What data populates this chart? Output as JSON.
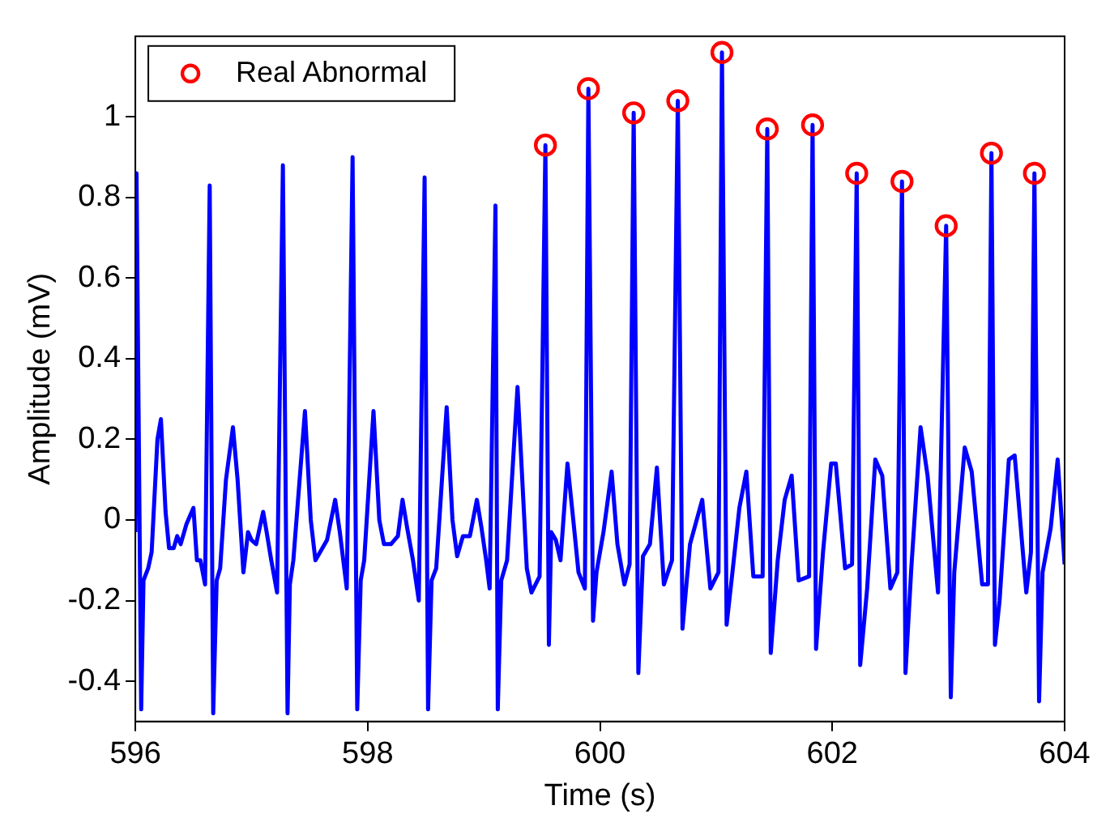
{
  "chart_data": {
    "type": "line",
    "xlabel": "Time (s)",
    "ylabel": "Amplitude (mV)",
    "xlim": [
      596,
      604
    ],
    "xticks": [
      596,
      598,
      600,
      602,
      604
    ],
    "ylim": [
      -0.5,
      1.2
    ],
    "yticks": [
      -0.4,
      -0.2,
      0,
      0.2,
      0.4,
      0.6,
      0.8,
      1
    ],
    "grid": false,
    "legend": "top left",
    "series": [
      {
        "type": "line",
        "color": "#0000ff",
        "marker": "none",
        "line_style": "solid",
        "x": [
          596.0,
          596.01,
          596.05,
          596.07,
          596.11,
          596.14,
          596.19,
          596.22,
          596.26,
          596.29,
          596.33,
          596.36,
          596.39,
          596.44,
          596.5,
          596.53,
          596.56,
          596.6,
          596.64,
          596.67,
          596.7,
          596.73,
          596.78,
          596.84,
          596.88,
          596.93,
          596.97,
          597.0,
          597.04,
          597.1,
          597.13,
          597.17,
          597.22,
          597.27,
          597.31,
          597.33,
          597.36,
          597.46,
          597.51,
          597.55,
          597.61,
          597.65,
          597.72,
          597.76,
          597.79,
          597.82,
          597.87,
          597.91,
          597.94,
          597.97,
          598.05,
          598.1,
          598.14,
          598.2,
          598.26,
          598.3,
          598.34,
          598.39,
          598.44,
          598.49,
          598.52,
          598.55,
          598.59,
          598.68,
          598.73,
          598.77,
          598.82,
          598.88,
          598.94,
          598.98,
          599.02,
          599.05,
          599.1,
          599.12,
          599.15,
          599.2,
          599.29,
          599.37,
          599.41,
          599.48,
          599.53,
          599.56,
          599.58,
          599.62,
          599.66,
          599.72,
          599.77,
          599.815,
          599.87,
          599.9,
          599.94,
          599.97,
          600.03,
          600.1,
          600.15,
          600.21,
          600.255,
          600.29,
          600.33,
          600.37,
          600.43,
          600.49,
          600.55,
          600.62,
          600.67,
          600.71,
          600.775,
          600.88,
          600.95,
          601.02,
          601.05,
          601.09,
          601.14,
          601.2,
          601.26,
          601.32,
          601.4,
          601.44,
          601.47,
          601.53,
          601.59,
          601.65,
          601.71,
          601.8,
          601.83,
          601.86,
          601.92,
          601.99,
          602.03,
          602.11,
          602.17,
          602.21,
          602.24,
          602.3,
          602.37,
          602.43,
          602.5,
          602.56,
          602.6,
          602.63,
          602.68,
          602.76,
          602.82,
          602.91,
          602.98,
          603.02,
          603.05,
          603.14,
          603.2,
          603.29,
          603.34,
          603.37,
          603.4,
          603.44,
          603.52,
          603.57,
          603.67,
          603.71,
          603.74,
          603.78,
          603.81,
          603.88,
          603.94,
          604.0
        ],
        "values": [
          -0.03,
          0.86,
          -0.47,
          -0.15,
          -0.12,
          -0.08,
          0.2,
          0.25,
          0.02,
          -0.07,
          -0.07,
          -0.04,
          -0.06,
          -0.01,
          0.03,
          -0.1,
          -0.1,
          -0.16,
          0.83,
          -0.48,
          -0.15,
          -0.12,
          0.1,
          0.23,
          0.1,
          -0.13,
          -0.03,
          -0.05,
          -0.06,
          0.02,
          -0.03,
          -0.1,
          -0.18,
          0.88,
          -0.48,
          -0.16,
          -0.1,
          0.27,
          0,
          -0.1,
          -0.07,
          -0.05,
          0.05,
          -0.03,
          -0.1,
          -0.17,
          0.9,
          -0.47,
          -0.15,
          -0.1,
          0.27,
          0,
          -0.06,
          -0.06,
          -0.04,
          0.05,
          -0.02,
          -0.1,
          -0.2,
          0.85,
          -0.47,
          -0.15,
          -0.12,
          0.28,
          0,
          -0.09,
          -0.04,
          -0.04,
          0.05,
          -0.02,
          -0.1,
          -0.17,
          0.78,
          -0.47,
          -0.15,
          -0.1,
          0.33,
          -0.12,
          -0.18,
          -0.14,
          0.93,
          -0.31,
          -0.03,
          -0.05,
          -0.1,
          0.14,
          0,
          -0.13,
          -0.17,
          1.07,
          -0.25,
          -0.13,
          -0.03,
          0.12,
          -0.06,
          -0.16,
          -0.11,
          1.01,
          -0.38,
          -0.09,
          -0.06,
          0.13,
          -0.16,
          -0.1,
          1.04,
          -0.27,
          -0.06,
          0.05,
          -0.17,
          -0.13,
          1.16,
          -0.26,
          -0.13,
          0.03,
          0.12,
          -0.14,
          -0.14,
          0.97,
          -0.33,
          -0.1,
          0.05,
          0.11,
          -0.15,
          -0.14,
          0.98,
          -0.32,
          -0.08,
          0.14,
          0.14,
          -0.12,
          -0.11,
          0.86,
          -0.36,
          -0.17,
          0.15,
          0.11,
          -0.17,
          -0.13,
          0.84,
          -0.38,
          -0.12,
          0.23,
          0.11,
          -0.18,
          0.73,
          -0.44,
          -0.13,
          0.18,
          0.12,
          -0.16,
          -0.16,
          0.91,
          -0.31,
          -0.2,
          0.15,
          0.16,
          -0.18,
          -0.08,
          0.86,
          -0.45,
          -0.13,
          -0.02,
          0.15,
          -0.11
        ]
      },
      {
        "type": "scatter",
        "name": "Real Abnormal",
        "color": "#ff0000",
        "marker": "circle",
        "x": [
          599.53,
          599.9,
          600.29,
          600.67,
          601.05,
          601.44,
          601.83,
          602.21,
          602.6,
          602.98,
          603.37,
          603.74
        ],
        "values": [
          0.93,
          1.07,
          1.01,
          1.04,
          1.16,
          0.97,
          0.98,
          0.86,
          0.84,
          0.73,
          0.91,
          0.86
        ]
      }
    ]
  }
}
